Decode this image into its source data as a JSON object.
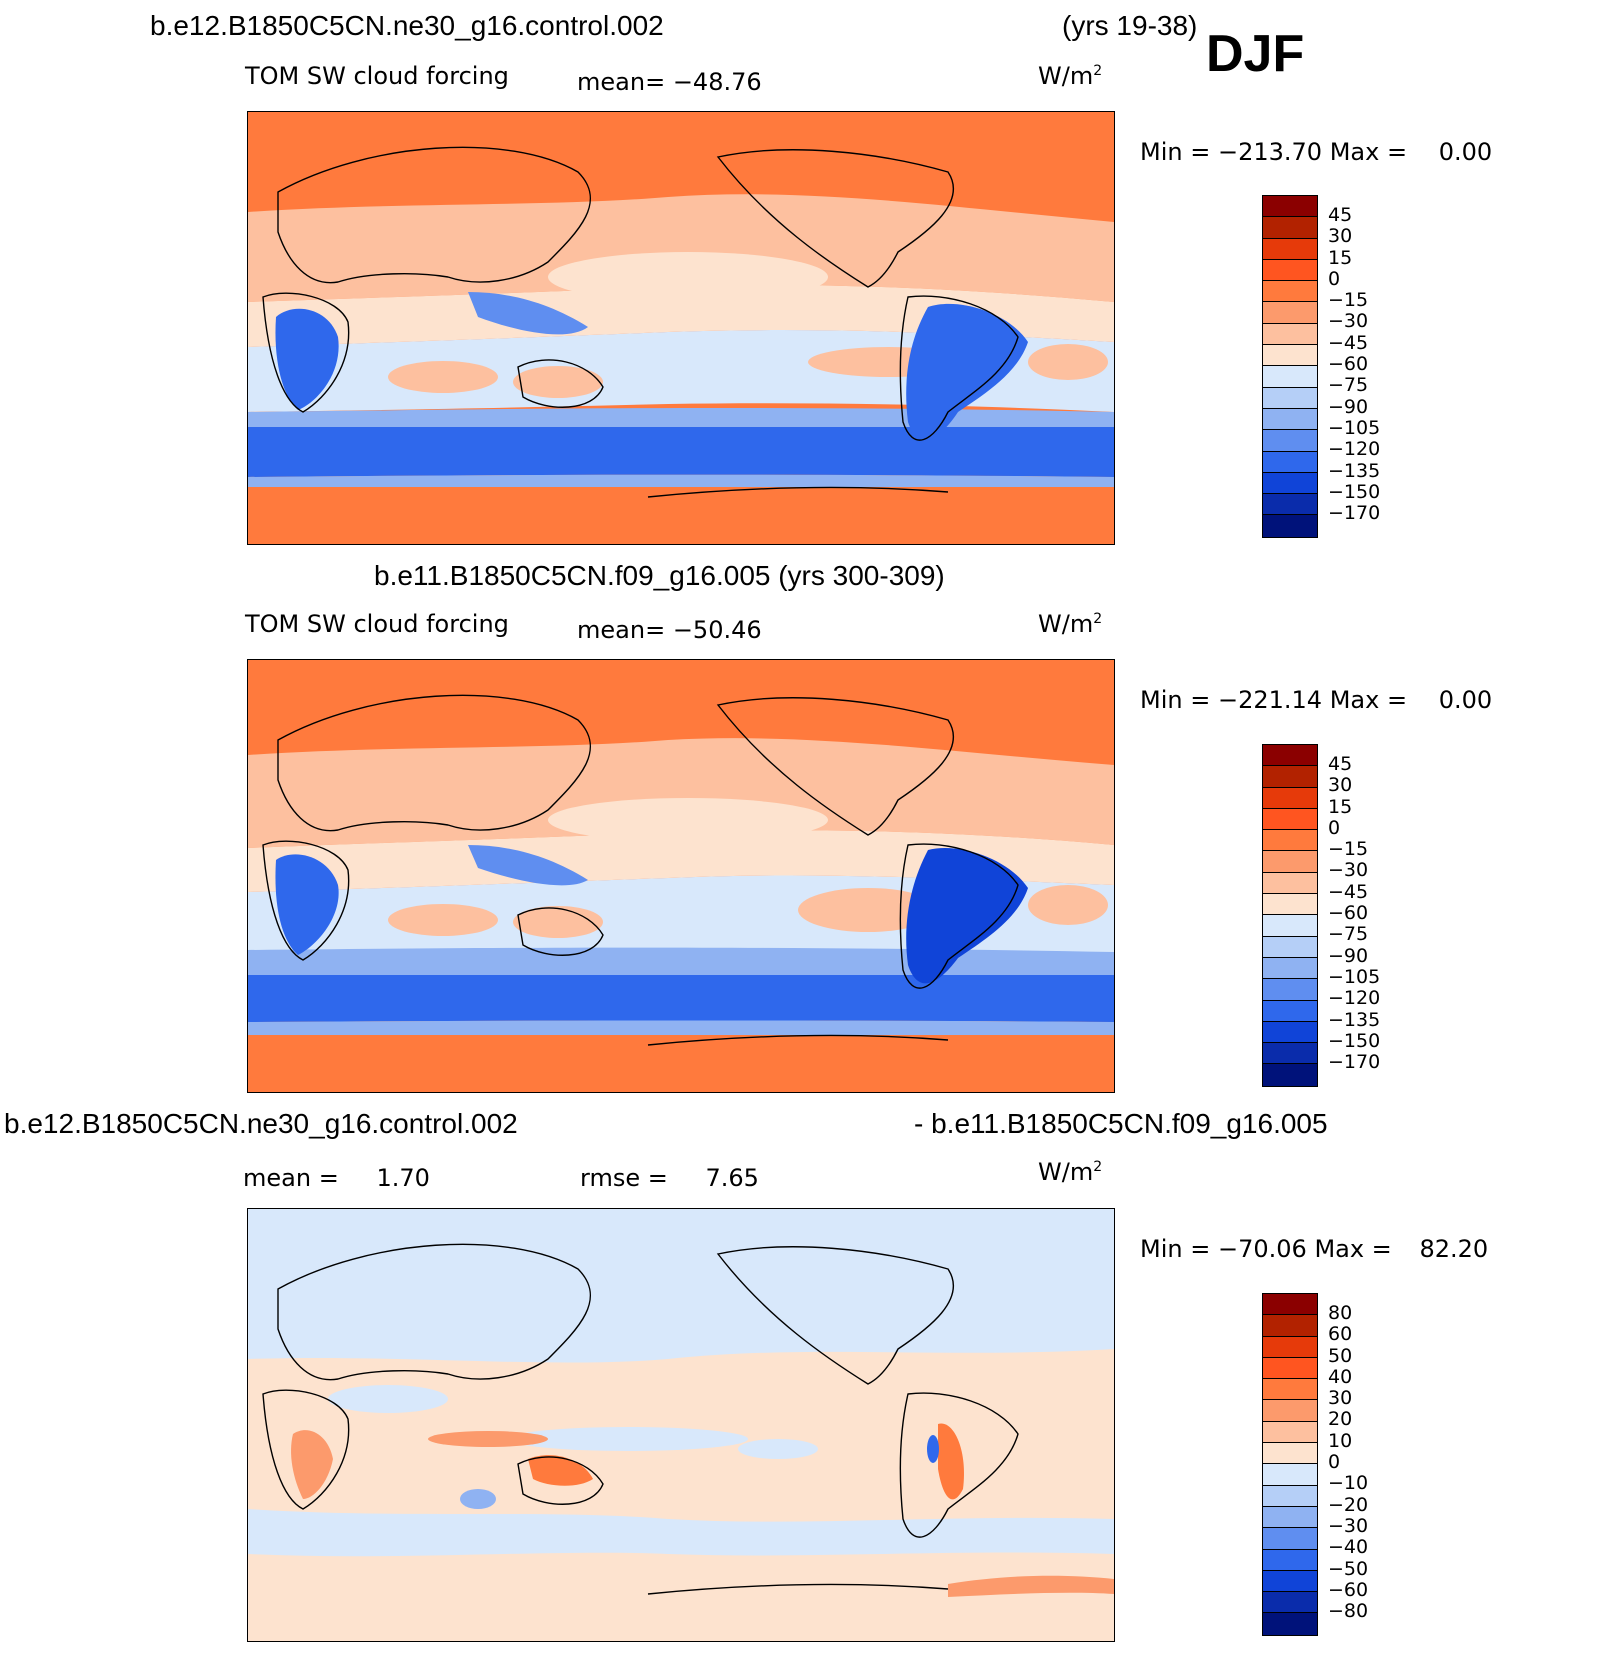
{
  "header": {
    "case1": "b.e12.B1850C5CN.ne30_g16.control.002",
    "years1": "(yrs 19-38)",
    "season": "DJF",
    "case2_title": "b.e11.B1850C5CN.f09_g16.005 (yrs 300-309)",
    "diff_left": "b.e12.B1850C5CN.ne30_g16.control.002",
    "diff_right": "- b.e11.B1850C5CN.f09_g16.005"
  },
  "panels": [
    {
      "variable": "TOM SW cloud forcing",
      "stat": "mean=",
      "stat_value": "−48.76",
      "unit_base": "W/m",
      "unit_exp": "2",
      "min_label": "Min  =",
      "min_value": "−213.70",
      "max_label": "Max  =",
      "max_value": "0.00",
      "legend_labels": [
        "45",
        "30",
        "15",
        "0",
        "−15",
        "−30",
        "−45",
        "−60",
        "−75",
        "−90",
        "−105",
        "−120",
        "−135",
        "−150",
        "−170"
      ]
    },
    {
      "variable": "TOM SW cloud forcing",
      "stat": "mean=",
      "stat_value": "−50.46",
      "unit_base": "W/m",
      "unit_exp": "2",
      "min_label": "Min  =",
      "min_value": "−221.14",
      "max_label": "Max  =",
      "max_value": "0.00",
      "legend_labels": [
        "45",
        "30",
        "15",
        "0",
        "−15",
        "−30",
        "−45",
        "−60",
        "−75",
        "−90",
        "−105",
        "−120",
        "−135",
        "−150",
        "−170"
      ]
    },
    {
      "mean_label": "mean  =",
      "mean_value": "1.70",
      "rmse_label": "rmse  =",
      "rmse_value": "7.65",
      "unit_base": "W/m",
      "unit_exp": "2",
      "min_label": "Min  =",
      "min_value": "−70.06",
      "max_label": "Max  =",
      "max_value": "82.20",
      "legend_labels": [
        "80",
        "60",
        "50",
        "40",
        "30",
        "20",
        "10",
        "0",
        "−10",
        "−20",
        "−30",
        "−40",
        "−50",
        "−60",
        "−80"
      ]
    }
  ],
  "colors": {
    "field_scale": [
      "#8b0000",
      "#b22200",
      "#e63a0a",
      "#ff5520",
      "#ff7a3d",
      "#fc9a6c",
      "#fdc09f",
      "#fde3cf",
      "#d8e8fb",
      "#b5cff7",
      "#8fb2f2",
      "#5f8ef0",
      "#2f68ec",
      "#1044d8",
      "#0a2cab",
      "#00127a"
    ],
    "diff_scale": [
      "#8b0000",
      "#b22200",
      "#e63a0a",
      "#ff5520",
      "#ff7a3d",
      "#fc9a6c",
      "#fdc09f",
      "#fde3cf",
      "#d8e8fb",
      "#b5cff7",
      "#8fb2f2",
      "#5f8ef0",
      "#2f68ec",
      "#1044d8",
      "#0a2cab",
      "#00127a"
    ]
  }
}
